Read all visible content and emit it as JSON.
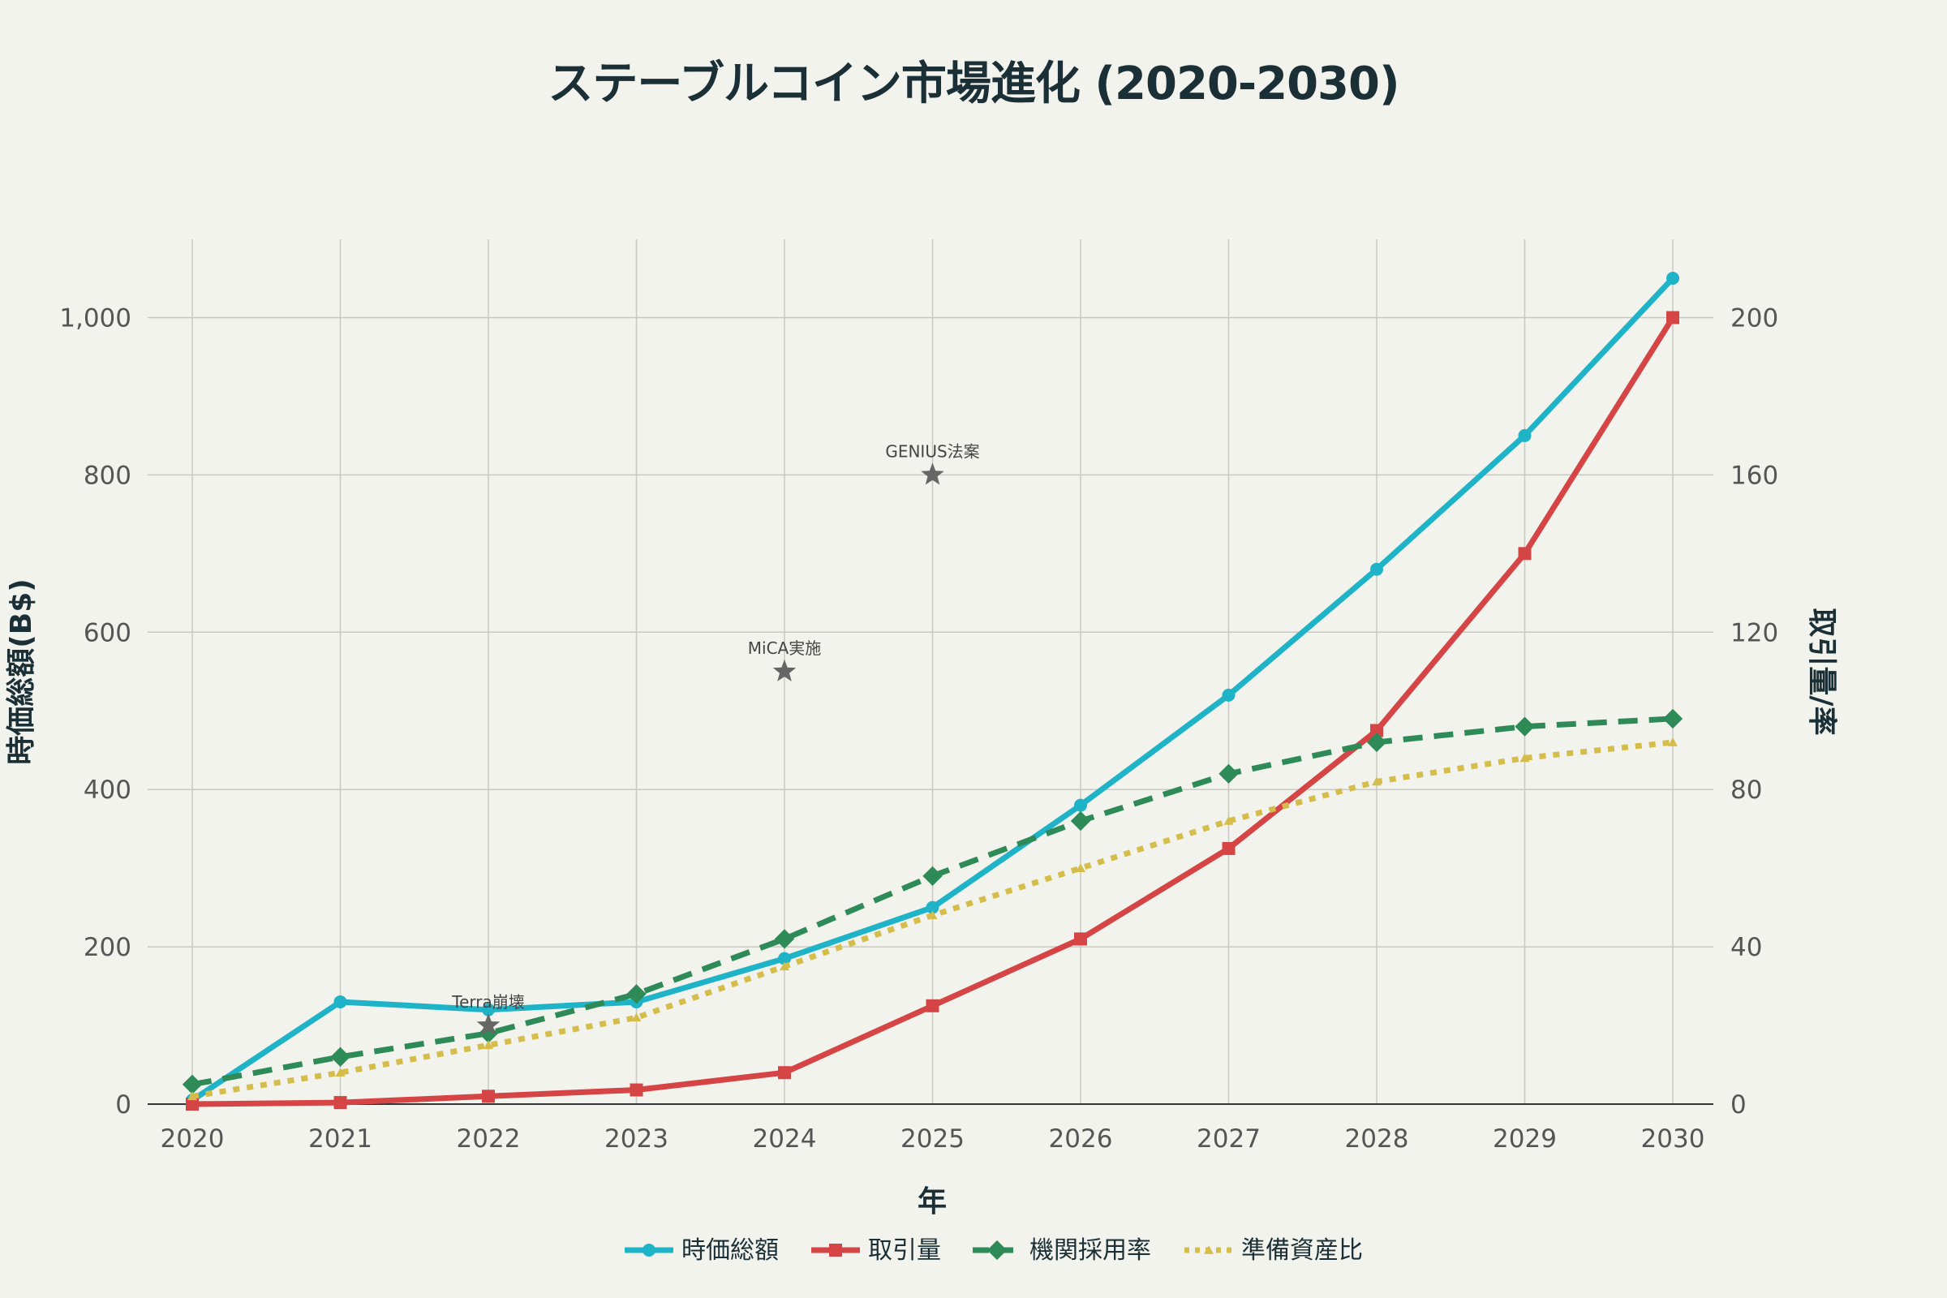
{
  "chart_data": {
    "type": "line",
    "title": "ステーブルコイン市場進化 (2020-2030)",
    "xlabel": "年",
    "ylabel_left": "時価総額(B$)",
    "ylabel_right": "取引量/率",
    "x": [
      2020,
      2021,
      2022,
      2023,
      2024,
      2025,
      2026,
      2027,
      2028,
      2029,
      2030
    ],
    "ylim_left": [
      0,
      1100
    ],
    "ylim_right": [
      0,
      220
    ],
    "yticks_left": [
      0,
      200,
      400,
      600,
      800,
      1000
    ],
    "yticks_left_labels": [
      "0",
      "200",
      "400",
      "600",
      "800",
      "1,000"
    ],
    "yticks_right": [
      0,
      40,
      80,
      120,
      160,
      200
    ],
    "yticks_right_labels": [
      "0",
      "40",
      "80",
      "120",
      "160",
      "200"
    ],
    "grid": true,
    "legend_position": "bottom-center",
    "series": [
      {
        "name": "時価総額",
        "axis": "left",
        "color": "#1fb3c8",
        "style": "solid",
        "marker": "circle",
        "values": [
          5,
          130,
          120,
          130,
          185,
          250,
          380,
          520,
          680,
          850,
          1050
        ]
      },
      {
        "name": "取引量",
        "axis": "left",
        "color": "#d64545",
        "style": "solid",
        "marker": "square",
        "values": [
          0,
          2,
          10,
          18,
          40,
          125,
          210,
          325,
          475,
          700,
          1000
        ]
      },
      {
        "name": "機関採用率",
        "axis": "right",
        "color": "#2e8b57",
        "style": "dash",
        "marker": "diamond",
        "values": [
          5,
          12,
          18,
          28,
          42,
          58,
          72,
          84,
          92,
          96,
          98
        ]
      },
      {
        "name": "準備資産比",
        "axis": "right",
        "color": "#d4bd4a",
        "style": "dot",
        "marker": "triangle",
        "values": [
          2,
          8,
          15,
          22,
          35,
          48,
          60,
          72,
          82,
          88,
          92
        ]
      }
    ],
    "annotations": [
      {
        "label": "Terra崩壊",
        "x": 2022,
        "y": 100,
        "marker": "star"
      },
      {
        "label": "MiCA実施",
        "x": 2024,
        "y": 550,
        "marker": "star"
      },
      {
        "label": "GENIUS法案",
        "x": 2025,
        "y": 800,
        "marker": "star"
      }
    ],
    "marker_color": "#666666"
  }
}
